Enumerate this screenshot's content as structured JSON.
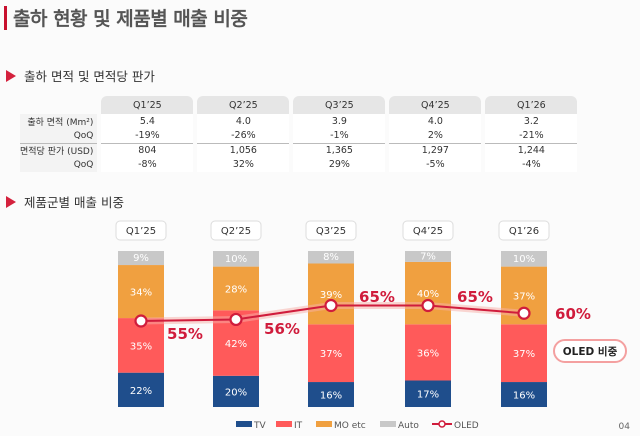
{
  "title": "출하 현황 및 제품별 매출 비중",
  "section1": "출하 면적 및 면적당 판가",
  "section2": "제품군별 매출 비중",
  "table": {
    "headers": [
      "Q1’25",
      "Q2’25",
      "Q3’25",
      "Q4’25",
      "Q1’26"
    ],
    "rows": [
      {
        "label": "출하 면적 (Mm²)",
        "values": [
          "5.4",
          "4.0",
          "3.9",
          "4.0",
          "3.2"
        ]
      },
      {
        "label": "QoQ",
        "values": [
          "-19%",
          "-26%",
          "-1%",
          "2%",
          "-21%"
        ]
      },
      {
        "label": "면적당 판가 (USD)",
        "values": [
          "804",
          "1,056",
          "1,365",
          "1,297",
          "1,244"
        ]
      },
      {
        "label": "QoQ",
        "values": [
          "-8%",
          "32%",
          "29%",
          "-5%",
          "-4%"
        ]
      }
    ]
  },
  "chart_data": {
    "type": "bar",
    "stacked": true,
    "categories": [
      "Q1’25",
      "Q2’25",
      "Q3’25",
      "Q4’25",
      "Q1’26"
    ],
    "series": [
      {
        "name": "TV",
        "color": "#1f4e8c",
        "values": [
          22,
          20,
          16,
          17,
          16
        ]
      },
      {
        "name": "IT",
        "color": "#ff5a5a",
        "values": [
          35,
          42,
          37,
          36,
          37
        ]
      },
      {
        "name": "MO etc",
        "color": "#f0a040",
        "values": [
          34,
          28,
          39,
          40,
          37
        ]
      },
      {
        "name": "Auto",
        "color": "#c8c8c8",
        "values": [
          9,
          10,
          8,
          7,
          10
        ]
      }
    ],
    "line": {
      "name": "OLED",
      "color": "#d01c3c",
      "values": [
        55,
        56,
        65,
        65,
        60
      ],
      "labels": [
        "55%",
        "56%",
        "65%",
        "65%",
        "60%"
      ]
    },
    "callout": "OLED 비중",
    "legend": "bottom"
  },
  "page_number": "04"
}
